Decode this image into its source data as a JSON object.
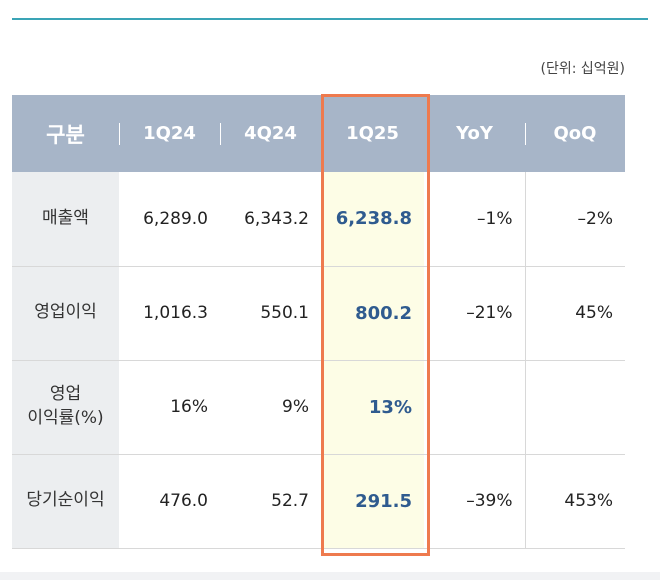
{
  "unit_note": "(단위: 십억원)",
  "headers": [
    "구분",
    "1Q24",
    "4Q24",
    "1Q25",
    "YoY",
    "QoQ"
  ],
  "rows": [
    {
      "label": "매출액",
      "values": [
        "6,289.0",
        "6,343.2",
        "6,238.8",
        "–1%",
        "–2%"
      ]
    },
    {
      "label": "영업이익",
      "values": [
        "1,016.3",
        "550.1",
        "800.2",
        "–21%",
        "45%"
      ]
    },
    {
      "label": "영업\n이익률(%)",
      "values": [
        "16%",
        "9%",
        "13%",
        "",
        ""
      ]
    },
    {
      "label": "당기순이익",
      "values": [
        "476.0",
        "52.7",
        "291.5",
        "–39%",
        "453%"
      ]
    }
  ],
  "colors": {
    "header_bg": "#a7b5c8",
    "highlight_bg": "#fdfde6",
    "highlight_border": "#ee7a4e",
    "highlight_text": "#2f5b8f",
    "top_rule": "#3aa4b6"
  }
}
